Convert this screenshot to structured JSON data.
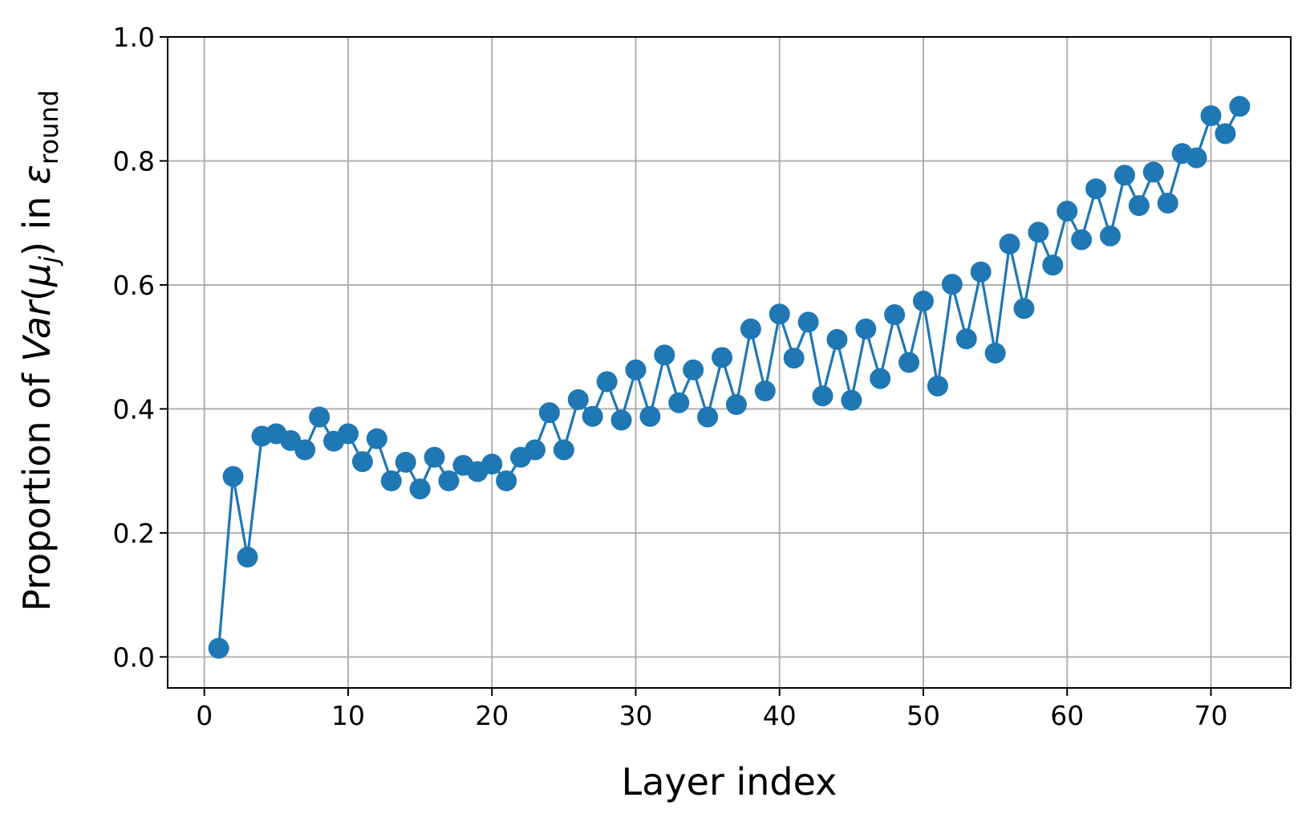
{
  "chart_data": {
    "type": "line",
    "xlabel": "Layer index",
    "ylabel": [
      "Proportion of ",
      "Var",
      "(",
      "μ",
      "j",
      ") in ",
      "ε",
      "round"
    ],
    "x": [
      1,
      2,
      3,
      4,
      5,
      6,
      7,
      8,
      9,
      10,
      11,
      12,
      13,
      14,
      15,
      16,
      17,
      18,
      19,
      20,
      21,
      22,
      23,
      24,
      25,
      26,
      27,
      28,
      29,
      30,
      31,
      32,
      33,
      34,
      35,
      36,
      37,
      38,
      39,
      40,
      41,
      42,
      43,
      44,
      45,
      46,
      47,
      48,
      49,
      50,
      51,
      52,
      53,
      54,
      55,
      56,
      57,
      58,
      59,
      60,
      61,
      62,
      63,
      64,
      65,
      66,
      67,
      68,
      69,
      70,
      71,
      72
    ],
    "series": [
      {
        "color": "#1f77b4",
        "values": [
          0.014,
          0.291,
          0.161,
          0.356,
          0.36,
          0.349,
          0.334,
          0.387,
          0.348,
          0.36,
          0.315,
          0.352,
          0.284,
          0.314,
          0.271,
          0.322,
          0.284,
          0.309,
          0.299,
          0.311,
          0.284,
          0.322,
          0.334,
          0.394,
          0.334,
          0.415,
          0.388,
          0.444,
          0.382,
          0.463,
          0.388,
          0.487,
          0.41,
          0.463,
          0.387,
          0.483,
          0.407,
          0.529,
          0.429,
          0.553,
          0.482,
          0.54,
          0.421,
          0.512,
          0.414,
          0.529,
          0.449,
          0.552,
          0.475,
          0.574,
          0.437,
          0.601,
          0.513,
          0.621,
          0.49,
          0.666,
          0.562,
          0.685,
          0.632,
          0.719,
          0.673,
          0.755,
          0.679,
          0.777,
          0.728,
          0.782,
          0.732,
          0.812,
          0.805,
          0.873,
          0.844,
          0.888
        ]
      }
    ],
    "xlim": [
      -2.55,
      75.55
    ],
    "xticks": [
      0,
      10,
      20,
      30,
      40,
      50,
      60,
      70
    ],
    "ylim": [
      -0.05,
      1.0
    ],
    "yticks": [
      {
        "value": 0,
        "label": "0.0"
      },
      {
        "value": 0.2,
        "label": "0.2"
      },
      {
        "value": 0.4,
        "label": "0.4"
      },
      {
        "value": 0.6,
        "label": "0.6"
      },
      {
        "value": 0.8,
        "label": "0.8"
      },
      {
        "value": 1.0,
        "label": "1.0"
      }
    ],
    "grid": true
  }
}
